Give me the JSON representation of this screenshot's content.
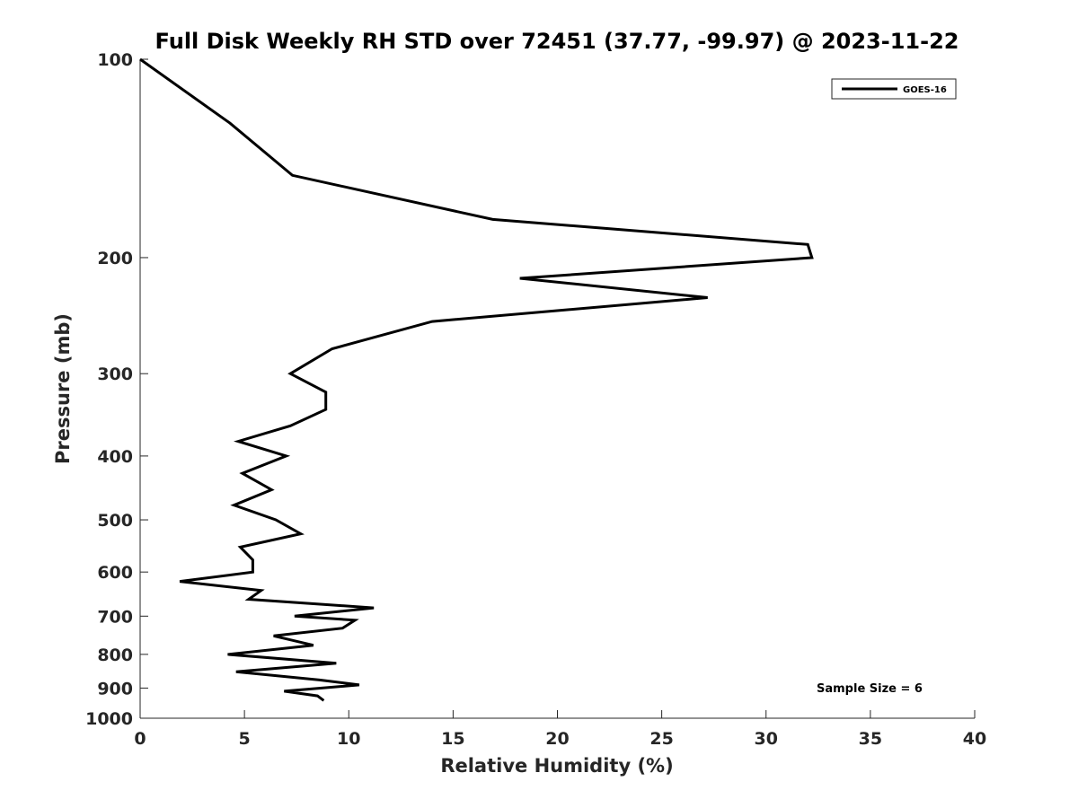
{
  "chart_data": {
    "type": "line",
    "title": "Full Disk Weekly RH STD over 72451 (37.77, -99.97) @ 2023-11-22",
    "xlabel": "Relative Humidity (%)",
    "ylabel": "Pressure (mb)",
    "xlim": [
      0,
      40
    ],
    "ylim": [
      100,
      1000
    ],
    "y_scale": "log",
    "y_reversed": true,
    "x_ticks": [
      0,
      5,
      10,
      15,
      20,
      25,
      30,
      35,
      40
    ],
    "x_tick_labels": [
      "0",
      "5",
      "10",
      "15",
      "20",
      "25",
      "30",
      "35",
      "40"
    ],
    "y_ticks": [
      100,
      200,
      300,
      400,
      500,
      600,
      700,
      800,
      900,
      1000
    ],
    "y_tick_labels": [
      "100",
      "200",
      "300",
      "400",
      "500",
      "600",
      "700",
      "800",
      "900",
      "1000"
    ],
    "grid": false,
    "legend_position": "top-right",
    "series": [
      {
        "name": "GOES-16",
        "color": "#000000",
        "points": [
          [
            0.0,
            100
          ],
          [
            4.3,
            125
          ],
          [
            7.3,
            150
          ],
          [
            16.9,
            175
          ],
          [
            32.0,
            191
          ],
          [
            32.2,
            200
          ],
          [
            18.2,
            215
          ],
          [
            27.2,
            230
          ],
          [
            14.0,
            250
          ],
          [
            9.2,
            275
          ],
          [
            7.2,
            300
          ],
          [
            8.9,
            320
          ],
          [
            8.9,
            340
          ],
          [
            7.2,
            360
          ],
          [
            4.7,
            380
          ],
          [
            7.0,
            400
          ],
          [
            4.9,
            425
          ],
          [
            6.3,
            450
          ],
          [
            4.5,
            475
          ],
          [
            6.5,
            500
          ],
          [
            7.7,
            525
          ],
          [
            4.8,
            550
          ],
          [
            5.4,
            575
          ],
          [
            5.4,
            600
          ],
          [
            1.9,
            620
          ],
          [
            5.8,
            640
          ],
          [
            5.2,
            660
          ],
          [
            11.2,
            680
          ],
          [
            7.4,
            700
          ],
          [
            10.3,
            710
          ],
          [
            9.7,
            730
          ],
          [
            6.4,
            750
          ],
          [
            8.3,
            775
          ],
          [
            4.2,
            800
          ],
          [
            9.4,
            825
          ],
          [
            4.6,
            850
          ],
          [
            8.6,
            875
          ],
          [
            10.5,
            890
          ],
          [
            6.9,
            910
          ],
          [
            8.5,
            925
          ],
          [
            8.8,
            940
          ]
        ]
      }
    ],
    "annotations": [
      {
        "text": "Sample Size = 6",
        "position": "bottom-right"
      }
    ]
  }
}
